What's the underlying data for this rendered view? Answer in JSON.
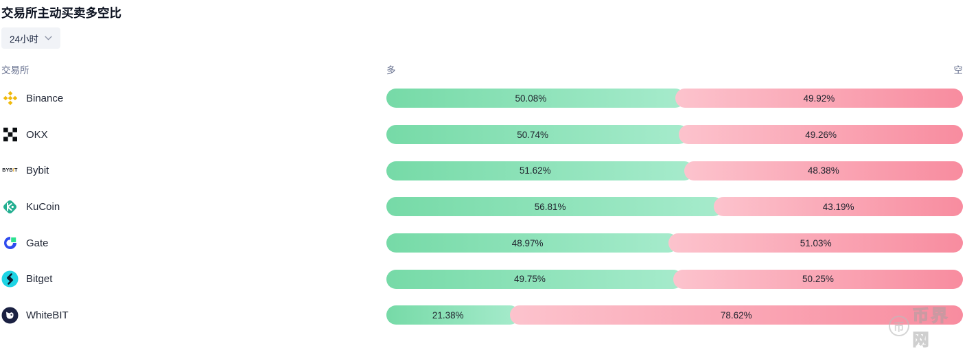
{
  "page": {
    "title": "交易所主动买卖多空比"
  },
  "controls": {
    "timeframe_dropdown": {
      "value": "24小时"
    }
  },
  "table": {
    "headers": {
      "exchange": "交易所",
      "long": "多",
      "short": "空"
    }
  },
  "colors": {
    "long_gradient_start": "#76daa7",
    "long_gradient_end": "#a6ebcc",
    "short_gradient_start": "#fcc3cd",
    "short_gradient_end": "#f88c9f",
    "binance_brand": "#f0b90b",
    "okx_brand": "#0b0e11",
    "bybit_accent": "#f7a600",
    "kucoin_brand": "#23af91",
    "gate_brand": "#2e4bee",
    "gate_accent": "#2ce28f",
    "bitget_brand": "#1ed4e4",
    "whitebit_brand": "#1b2142"
  },
  "rows": [
    {
      "exchange": "Binance",
      "icon": "binance-icon",
      "long_label": "50.08%",
      "short_label": "49.92%",
      "long_pct": 50.08,
      "short_pct": 49.92
    },
    {
      "exchange": "OKX",
      "icon": "okx-icon",
      "long_label": "50.74%",
      "short_label": "49.26%",
      "long_pct": 50.74,
      "short_pct": 49.26
    },
    {
      "exchange": "Bybit",
      "icon": "bybit-icon",
      "long_label": "51.62%",
      "short_label": "48.38%",
      "long_pct": 51.62,
      "short_pct": 48.38
    },
    {
      "exchange": "KuCoin",
      "icon": "kucoin-icon",
      "long_label": "56.81%",
      "short_label": "43.19%",
      "long_pct": 56.81,
      "short_pct": 43.19
    },
    {
      "exchange": "Gate",
      "icon": "gate-icon",
      "long_label": "48.97%",
      "short_label": "51.03%",
      "long_pct": 48.97,
      "short_pct": 51.03
    },
    {
      "exchange": "Bitget",
      "icon": "bitget-icon",
      "long_label": "49.75%",
      "short_label": "50.25%",
      "long_pct": 49.75,
      "short_pct": 50.25
    },
    {
      "exchange": "WhiteBIT",
      "icon": "whitebit-icon",
      "long_label": "21.38%",
      "short_label": "78.62%",
      "long_pct": 21.38,
      "short_pct": 78.62
    }
  ],
  "chart_data": {
    "type": "bar",
    "subtype": "horizontal-stacked-100pct",
    "title": "交易所主动买卖多空比",
    "timeframe": "24小时",
    "categories": [
      "Binance",
      "OKX",
      "Bybit",
      "KuCoin",
      "Gate",
      "Bitget",
      "WhiteBIT"
    ],
    "series": [
      {
        "name": "多",
        "color": "#76daa7",
        "values": [
          50.08,
          50.74,
          51.62,
          56.81,
          48.97,
          49.75,
          21.38
        ]
      },
      {
        "name": "空",
        "color": "#f88c9f",
        "values": [
          49.92,
          49.26,
          48.38,
          43.19,
          51.03,
          50.25,
          78.62
        ]
      }
    ],
    "value_unit": "%",
    "xlim": [
      0,
      100
    ],
    "grid": false,
    "legend_position": "none",
    "data_labels": true
  },
  "watermark": {
    "symbol": "币",
    "text": "币界网"
  }
}
